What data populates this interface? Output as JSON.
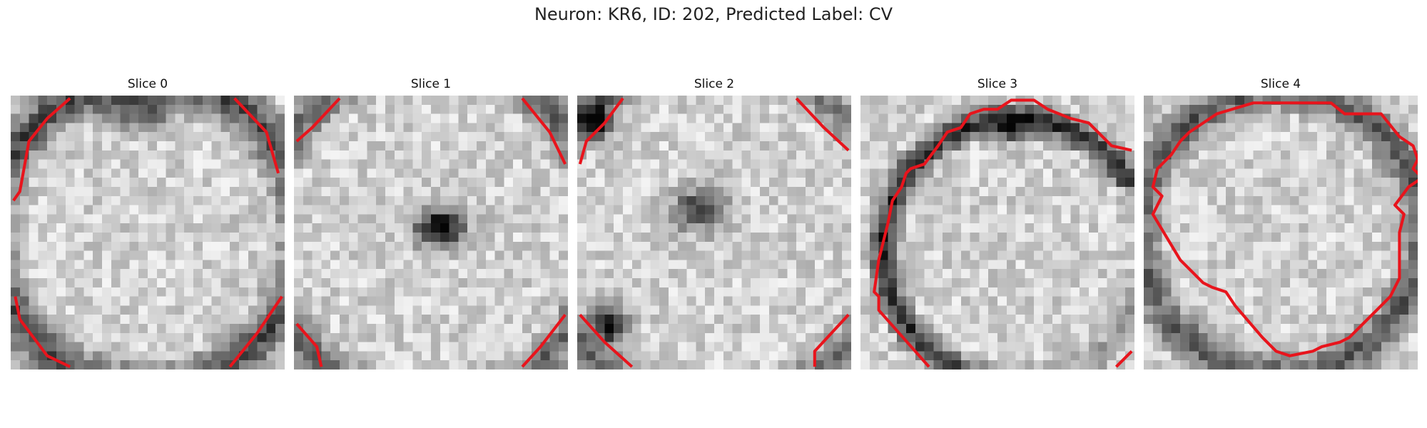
{
  "figure": {
    "title": "Neuron: KR6, ID: 202, Predicted Label: CV"
  },
  "panels": [
    {
      "title": "Slice 0",
      "pattern": "ring-corners",
      "seed": 11
    },
    {
      "title": "Slice 1",
      "pattern": "center-blob",
      "seed": 23
    },
    {
      "title": "Slice 2",
      "pattern": "center-blob-soft",
      "seed": 37
    },
    {
      "title": "Slice 3",
      "pattern": "dark-arc",
      "seed": 53
    },
    {
      "title": "Slice 4",
      "pattern": "ring-inner",
      "seed": 71
    }
  ],
  "colors": {
    "contour": "#e8141c",
    "background": "#ffffff"
  }
}
